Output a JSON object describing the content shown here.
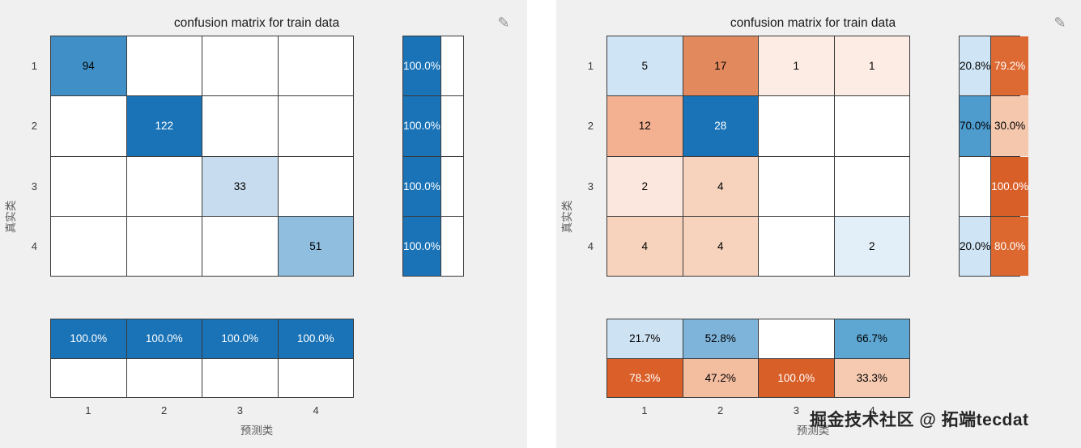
{
  "watermark": "掘金技术社区 @ 拓端tecdat",
  "icons": {
    "brush": "✎"
  },
  "colors": {
    "panel_bg": "#f0f0f0",
    "grid_line": "#3a3a3a",
    "diag_blue_dark": "#1a73b7",
    "diag_blue_light": "#cfe4f4",
    "offdiag_orange_dark": "#d95f29",
    "offdiag_orange_light": "#fcece3"
  },
  "chart_data": [
    {
      "type": "heatmap",
      "title": "confusion matrix for train data",
      "xlabel": "预测类",
      "ylabel": "真实类",
      "classes": [
        "1",
        "2",
        "3",
        "4"
      ],
      "matrix": [
        [
          94,
          null,
          null,
          null
        ],
        [
          null,
          122,
          null,
          null
        ],
        [
          null,
          null,
          33,
          null
        ],
        [
          null,
          null,
          null,
          51
        ]
      ],
      "row_summary_pct": [
        [
          100.0,
          null
        ],
        [
          100.0,
          null
        ],
        [
          100.0,
          null
        ],
        [
          100.0,
          null
        ]
      ],
      "col_summary_pct": [
        [
          100.0,
          100.0,
          100.0,
          100.0
        ],
        [
          null,
          null,
          null,
          null
        ]
      ],
      "legend": "none",
      "grid": true
    },
    {
      "type": "heatmap",
      "title": "confusion matrix for train data",
      "xlabel": "预测类",
      "ylabel": "真实类",
      "classes": [
        "1",
        "2",
        "3",
        "4"
      ],
      "matrix": [
        [
          5,
          17,
          1,
          1
        ],
        [
          12,
          28,
          null,
          null
        ],
        [
          2,
          4,
          null,
          null
        ],
        [
          4,
          4,
          null,
          2
        ]
      ],
      "row_summary_pct": [
        [
          20.8,
          79.2
        ],
        [
          70.0,
          30.0
        ],
        [
          null,
          100.0
        ],
        [
          20.0,
          80.0
        ]
      ],
      "col_summary_pct": [
        [
          21.7,
          52.8,
          null,
          66.7
        ],
        [
          78.3,
          47.2,
          100.0,
          33.3
        ]
      ],
      "legend": "none",
      "grid": true
    }
  ],
  "left": {
    "title": "confusion matrix for train data",
    "xlabel": "预测类",
    "ylabel": "真实类",
    "row_labels": [
      "1",
      "2",
      "3",
      "4"
    ],
    "col_labels": [
      "1",
      "2",
      "3",
      "4"
    ],
    "main": {
      "cols": 4,
      "cells": [
        [
          {
            "t": "94",
            "bg": "#4090c7"
          },
          {
            "t": "",
            "bg": "#ffffff"
          },
          {
            "t": "",
            "bg": "#ffffff"
          },
          {
            "t": "",
            "bg": "#ffffff"
          }
        ],
        [
          {
            "t": "",
            "bg": "#ffffff"
          },
          {
            "t": "122",
            "bg": "#1a73b7",
            "fg": "#ffffff"
          },
          {
            "t": "",
            "bg": "#ffffff"
          },
          {
            "t": "",
            "bg": "#ffffff"
          }
        ],
        [
          {
            "t": "",
            "bg": "#ffffff"
          },
          {
            "t": "",
            "bg": "#ffffff"
          },
          {
            "t": "33",
            "bg": "#c7dcee"
          },
          {
            "t": "",
            "bg": "#ffffff"
          }
        ],
        [
          {
            "t": "",
            "bg": "#ffffff"
          },
          {
            "t": "",
            "bg": "#ffffff"
          },
          {
            "t": "",
            "bg": "#ffffff"
          },
          {
            "t": "51",
            "bg": "#8fbedf"
          }
        ]
      ]
    },
    "row_summary": {
      "cols": 2,
      "cells": [
        [
          {
            "t": "100.0%",
            "bg": "#1a73b7",
            "fg": "#ffffff"
          },
          {
            "t": "",
            "bg": "#ffffff"
          }
        ],
        [
          {
            "t": "100.0%",
            "bg": "#1a73b7",
            "fg": "#ffffff"
          },
          {
            "t": "",
            "bg": "#ffffff"
          }
        ],
        [
          {
            "t": "100.0%",
            "bg": "#1a73b7",
            "fg": "#ffffff"
          },
          {
            "t": "",
            "bg": "#ffffff"
          }
        ],
        [
          {
            "t": "100.0%",
            "bg": "#1a73b7",
            "fg": "#ffffff"
          },
          {
            "t": "",
            "bg": "#ffffff"
          }
        ]
      ]
    },
    "col_summary": {
      "cols": 4,
      "cells": [
        [
          {
            "t": "100.0%",
            "bg": "#1a73b7",
            "fg": "#ffffff"
          },
          {
            "t": "100.0%",
            "bg": "#1a73b7",
            "fg": "#ffffff"
          },
          {
            "t": "100.0%",
            "bg": "#1a73b7",
            "fg": "#ffffff"
          },
          {
            "t": "100.0%",
            "bg": "#1a73b7",
            "fg": "#ffffff"
          }
        ],
        [
          {
            "t": "",
            "bg": "#ffffff"
          },
          {
            "t": "",
            "bg": "#ffffff"
          },
          {
            "t": "",
            "bg": "#ffffff"
          },
          {
            "t": "",
            "bg": "#ffffff"
          }
        ]
      ]
    }
  },
  "right": {
    "title": "confusion matrix for train data",
    "xlabel": "预测类",
    "ylabel": "真实类",
    "row_labels": [
      "1",
      "2",
      "3",
      "4"
    ],
    "col_labels": [
      "1",
      "2",
      "3",
      "4"
    ],
    "main": {
      "cols": 4,
      "cells": [
        [
          {
            "t": "5",
            "bg": "#cfe4f4"
          },
          {
            "t": "17",
            "bg": "#e28a5e"
          },
          {
            "t": "1",
            "bg": "#fcece3"
          },
          {
            "t": "1",
            "bg": "#fcece3"
          }
        ],
        [
          {
            "t": "12",
            "bg": "#f3b191"
          },
          {
            "t": "28",
            "bg": "#1a73b7",
            "fg": "#ffffff"
          },
          {
            "t": "",
            "bg": "#ffffff"
          },
          {
            "t": "",
            "bg": "#ffffff"
          }
        ],
        [
          {
            "t": "2",
            "bg": "#fbe7dd"
          },
          {
            "t": "4",
            "bg": "#f7d2bd"
          },
          {
            "t": "",
            "bg": "#ffffff"
          },
          {
            "t": "",
            "bg": "#ffffff"
          }
        ],
        [
          {
            "t": "4",
            "bg": "#f7d2bd"
          },
          {
            "t": "4",
            "bg": "#f7d2bd"
          },
          {
            "t": "",
            "bg": "#ffffff"
          },
          {
            "t": "2",
            "bg": "#e2eef8"
          }
        ]
      ]
    },
    "row_summary": {
      "cols": 2,
      "cells": [
        [
          {
            "t": "20.8%",
            "bg": "#cfe4f4"
          },
          {
            "t": "79.2%",
            "bg": "#dd6a33",
            "fg": "#ffffff"
          }
        ],
        [
          {
            "t": "70.0%",
            "bg": "#4e9bce"
          },
          {
            "t": "30.0%",
            "bg": "#f5c7ac"
          }
        ],
        [
          {
            "t": "",
            "bg": "#ffffff"
          },
          {
            "t": "100.0%",
            "bg": "#d95f29",
            "fg": "#ffffff"
          }
        ],
        [
          {
            "t": "20.0%",
            "bg": "#cfe4f4"
          },
          {
            "t": "80.0%",
            "bg": "#dc6830",
            "fg": "#ffffff"
          }
        ]
      ]
    },
    "col_summary": {
      "cols": 4,
      "cells": [
        [
          {
            "t": "21.7%",
            "bg": "#cde2f3"
          },
          {
            "t": "52.8%",
            "bg": "#7fb4da"
          },
          {
            "t": "",
            "bg": "#ffffff"
          },
          {
            "t": "66.7%",
            "bg": "#5ea7d2"
          }
        ],
        [
          {
            "t": "78.3%",
            "bg": "#da5f28",
            "fg": "#ffffff"
          },
          {
            "t": "47.2%",
            "bg": "#f3bda0"
          },
          {
            "t": "100.0%",
            "bg": "#d95f29",
            "fg": "#ffffff"
          },
          {
            "t": "33.3%",
            "bg": "#f6cab1"
          }
        ]
      ]
    }
  }
}
